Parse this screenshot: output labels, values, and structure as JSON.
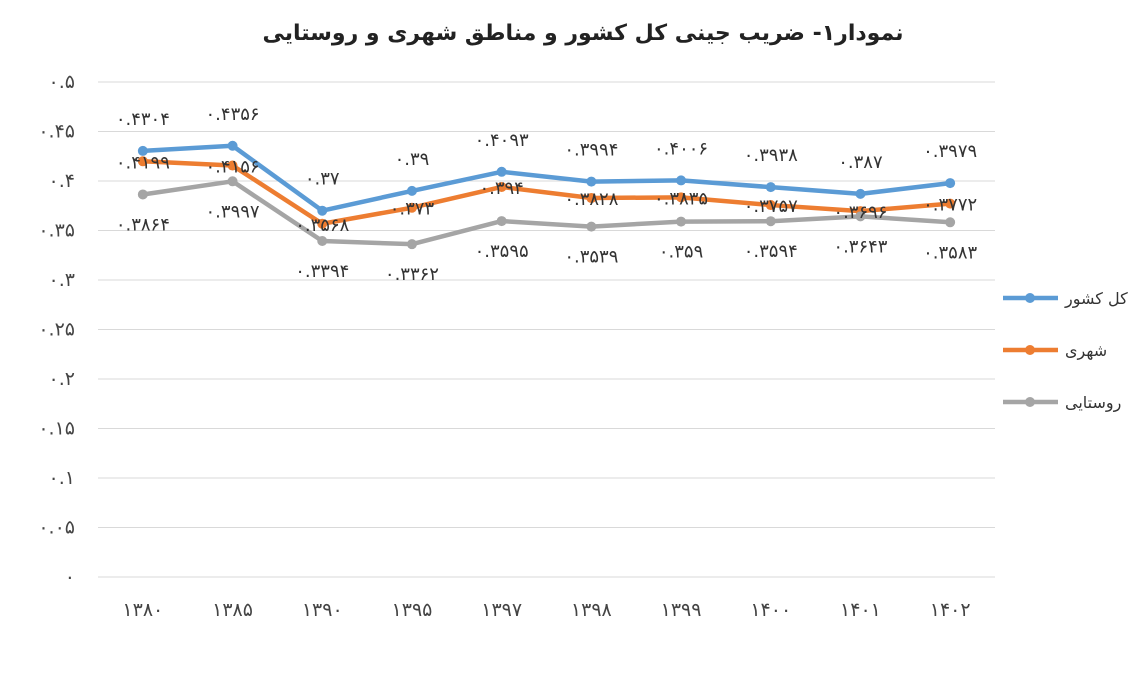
{
  "chart_data": {
    "type": "line",
    "title": "نمودار۱- ضریب جینی کل کشور و مناطق شهری و روستایی",
    "categories": [
      "۱۳۸۰",
      "۱۳۸۵",
      "۱۳۹۰",
      "۱۳۹۵",
      "۱۳۹۷",
      "۱۳۹۸",
      "۱۳۹۹",
      "۱۴۰۰",
      "۱۴۰۱",
      "۱۴۰۲"
    ],
    "ylim": [
      0,
      0.5
    ],
    "yticks": [
      0,
      0.05,
      0.1,
      0.15,
      0.2,
      0.25,
      0.3,
      0.35,
      0.4,
      0.45,
      0.5
    ],
    "ytick_labels": [
      "۰",
      "۰.۰۵",
      "۰.۱",
      "۰.۱۵",
      "۰.۲",
      "۰.۲۵",
      "۰.۳",
      "۰.۳۵",
      "۰.۴",
      "۰.۴۵",
      "۰.۵"
    ],
    "grid": true,
    "legend_position": "right",
    "series": [
      {
        "name": "کل کشور",
        "color": "#5b9bd5",
        "values": [
          0.4304,
          0.4356,
          0.37,
          0.39,
          0.4093,
          0.3994,
          0.4006,
          0.3938,
          0.387,
          0.3979
        ],
        "labels": [
          "۰.۴۳۰۴",
          "۰.۴۳۵۶",
          "۰.۳۷",
          "۰.۳۹",
          "۰.۴۰۹۳",
          "۰.۳۹۹۴",
          "۰.۴۰۰۶",
          "۰.۳۹۳۸",
          "۰.۳۸۷",
          "۰.۳۹۷۹"
        ]
      },
      {
        "name": "شهری",
        "color": "#ed7d31",
        "values": [
          0.4199,
          0.4156,
          0.3568,
          0.373,
          0.394,
          0.3828,
          0.3835,
          0.3757,
          0.3696,
          0.3772
        ],
        "labels": [
          "۰.۴۱۹۹",
          "۰.۴۱۵۶",
          "۰.۳۵۶۸",
          "۰.۳۷۳",
          "۰.۳۹۴",
          "۰.۳۸۲۸",
          "۰.۳۸۳۵",
          "۰.۳۷۵۷",
          "۰.۳۶۹۶",
          "۰.۳۷۷۲"
        ]
      },
      {
        "name": "روستایی",
        "color": "#a5a5a5",
        "values": [
          0.3864,
          0.3997,
          0.3394,
          0.3362,
          0.3595,
          0.3539,
          0.359,
          0.3594,
          0.3643,
          0.3583
        ],
        "labels": [
          "۰.۳۸۶۴",
          "۰.۳۹۹۷",
          "۰.۳۳۹۴",
          "۰.۳۳۶۲",
          "۰.۳۵۹۵",
          "۰.۳۵۳۹",
          "۰.۳۵۹",
          "۰.۳۵۹۴",
          "۰.۳۶۴۳",
          "۰.۳۵۸۳"
        ]
      }
    ]
  }
}
